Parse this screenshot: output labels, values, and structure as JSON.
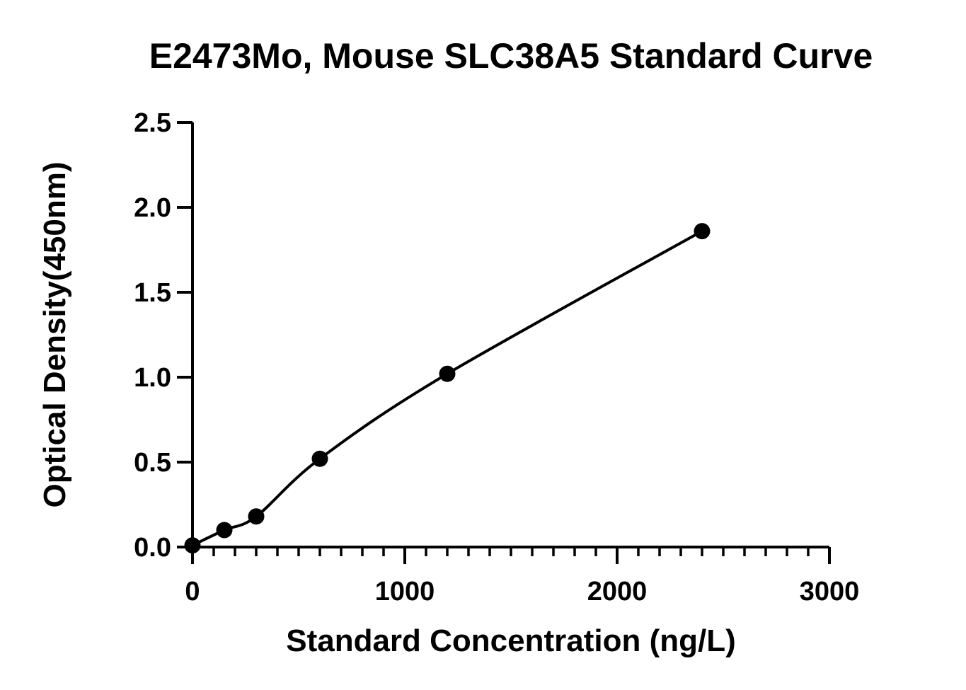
{
  "chart_data": {
    "type": "scatter",
    "title": "E2473Mo, Mouse SLC38A5 Standard Curve",
    "xlabel": "Standard Concentration (ng/L)",
    "ylabel": "Optical Density(450nm)",
    "xlim": [
      0,
      3000
    ],
    "ylim": [
      0,
      2.5
    ],
    "x_ticks": [
      "0",
      "1000",
      "2000",
      "3000"
    ],
    "y_ticks": [
      "0.0",
      "0.5",
      "1.0",
      "1.5",
      "2.0",
      "2.5"
    ],
    "x_tick_values": [
      0,
      1000,
      2000,
      3000
    ],
    "y_tick_values": [
      0,
      0.5,
      1.0,
      1.5,
      2.0,
      2.5
    ],
    "x_minor_step": 100,
    "y_minor_step": 0.1,
    "grid": false,
    "series": [
      {
        "points": [
          {
            "x": 0,
            "y": 0.01
          },
          {
            "x": 150,
            "y": 0.1
          },
          {
            "x": 300,
            "y": 0.18
          },
          {
            "x": 600,
            "y": 0.52
          },
          {
            "x": 1200,
            "y": 1.02
          },
          {
            "x": 2400,
            "y": 1.86
          }
        ],
        "marker_color": "#000000",
        "fit_curve": true
      }
    ]
  }
}
